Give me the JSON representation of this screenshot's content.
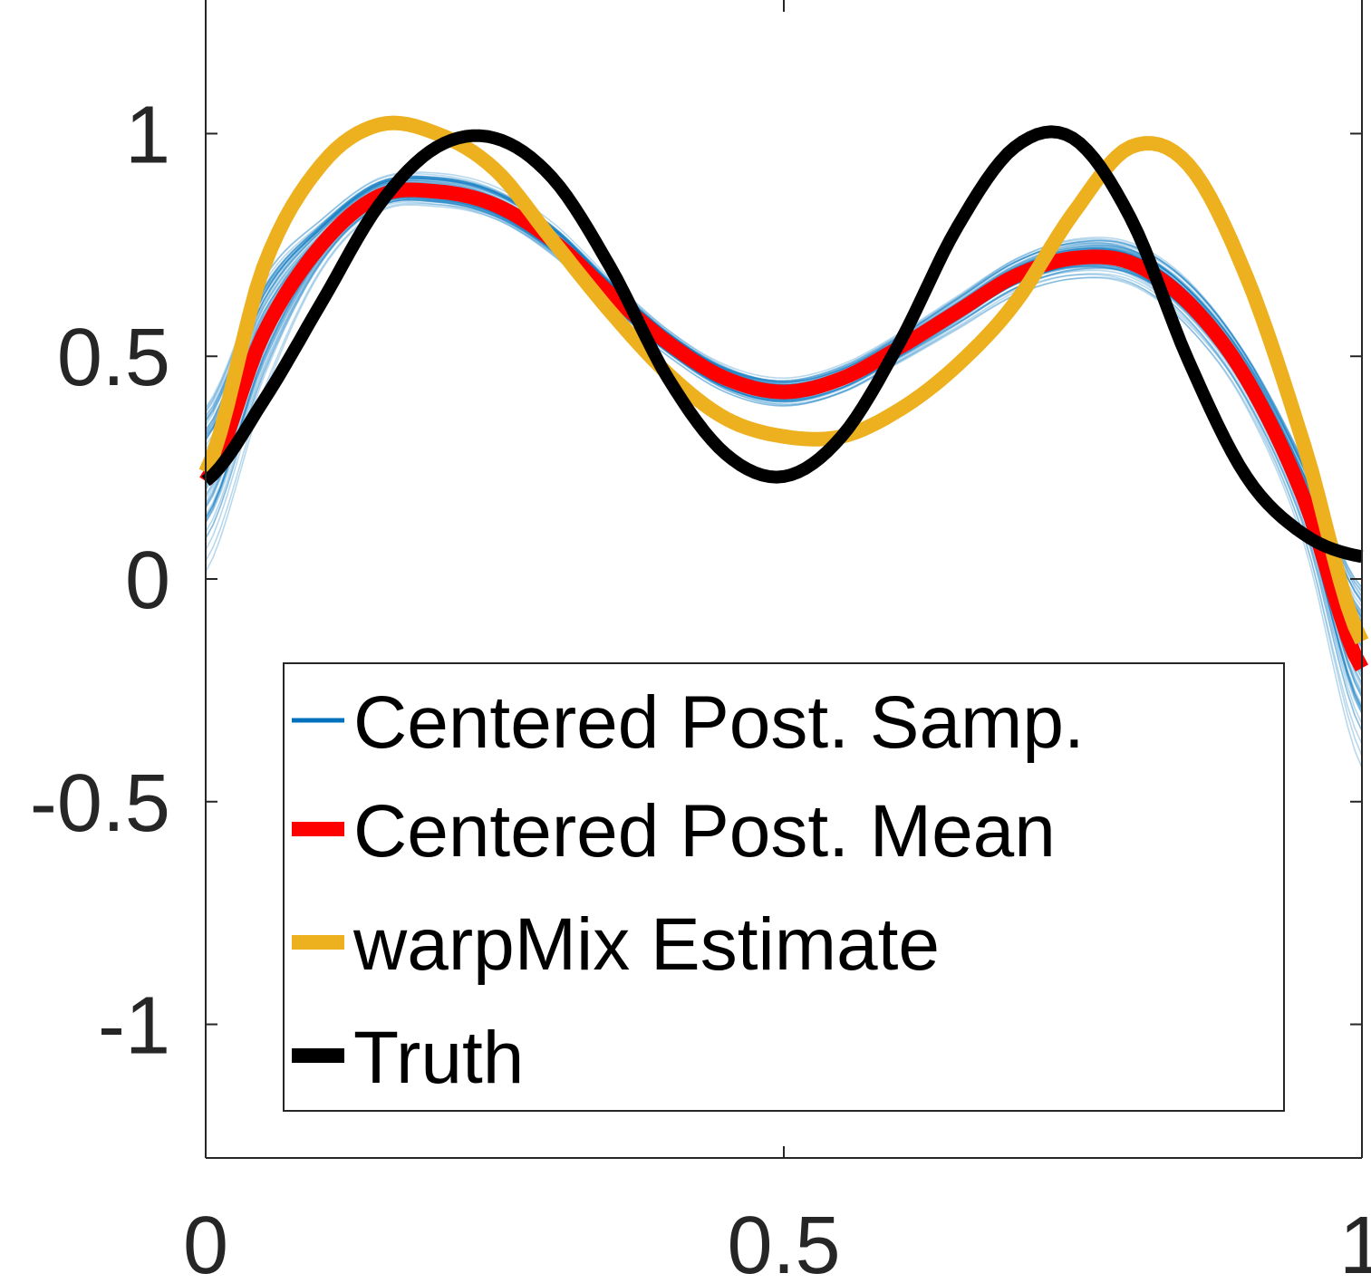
{
  "chart_data": {
    "type": "line",
    "title": "",
    "xlabel": "",
    "ylabel": "",
    "xlim": [
      0,
      1
    ],
    "ylim": [
      -1.3,
      1.3
    ],
    "grid": false,
    "legend_position": "bottom-center",
    "x_ticks": [
      {
        "value": 0,
        "label": "0"
      },
      {
        "value": 0.5,
        "label": "0.5"
      },
      {
        "value": 1,
        "label": "1"
      }
    ],
    "y_ticks": [
      {
        "value": 1,
        "label": "1"
      },
      {
        "value": 0.5,
        "label": "0.5"
      },
      {
        "value": 0,
        "label": "0"
      },
      {
        "value": -0.5,
        "label": "-0.5"
      },
      {
        "value": -1,
        "label": "-1"
      }
    ],
    "x": [
      0,
      0.05,
      0.1,
      0.15,
      0.2,
      0.25,
      0.3,
      0.35,
      0.4,
      0.45,
      0.5,
      0.55,
      0.6,
      0.65,
      0.7,
      0.75,
      0.8,
      0.85,
      0.9,
      0.95,
      1.0
    ],
    "series": [
      {
        "name": "Centered Post. Samp.",
        "color": "#0072BD",
        "style": "band",
        "values": [
          0.22,
          0.55,
          0.75,
          0.86,
          0.87,
          0.84,
          0.76,
          0.64,
          0.53,
          0.45,
          0.42,
          0.45,
          0.52,
          0.6,
          0.68,
          0.72,
          0.71,
          0.62,
          0.45,
          0.18,
          -0.2
        ],
        "spread": [
          0.5,
          0.35,
          0.15,
          0.1,
          0.1,
          0.1,
          0.1,
          0.09,
          0.08,
          0.08,
          0.08,
          0.08,
          0.08,
          0.09,
          0.1,
          0.11,
          0.12,
          0.14,
          0.16,
          0.25,
          0.55
        ]
      },
      {
        "name": "Centered Post. Mean",
        "color": "#FF0000",
        "values": [
          0.22,
          0.55,
          0.75,
          0.86,
          0.87,
          0.84,
          0.76,
          0.64,
          0.53,
          0.45,
          0.42,
          0.45,
          0.52,
          0.6,
          0.68,
          0.72,
          0.71,
          0.62,
          0.45,
          0.18,
          -0.2
        ]
      },
      {
        "name": "warpMix Estimate",
        "color": "#EDB120",
        "values": [
          0.24,
          0.7,
          0.93,
          1.02,
          1.0,
          0.92,
          0.76,
          0.6,
          0.46,
          0.36,
          0.32,
          0.32,
          0.38,
          0.48,
          0.62,
          0.82,
          0.97,
          0.93,
          0.68,
          0.3,
          -0.14
        ]
      },
      {
        "name": "Truth",
        "color": "#000000",
        "values": [
          0.22,
          0.4,
          0.62,
          0.84,
          0.97,
          0.99,
          0.9,
          0.7,
          0.45,
          0.28,
          0.23,
          0.32,
          0.53,
          0.79,
          0.97,
          0.99,
          0.81,
          0.49,
          0.23,
          0.1,
          0.05
        ]
      }
    ]
  }
}
